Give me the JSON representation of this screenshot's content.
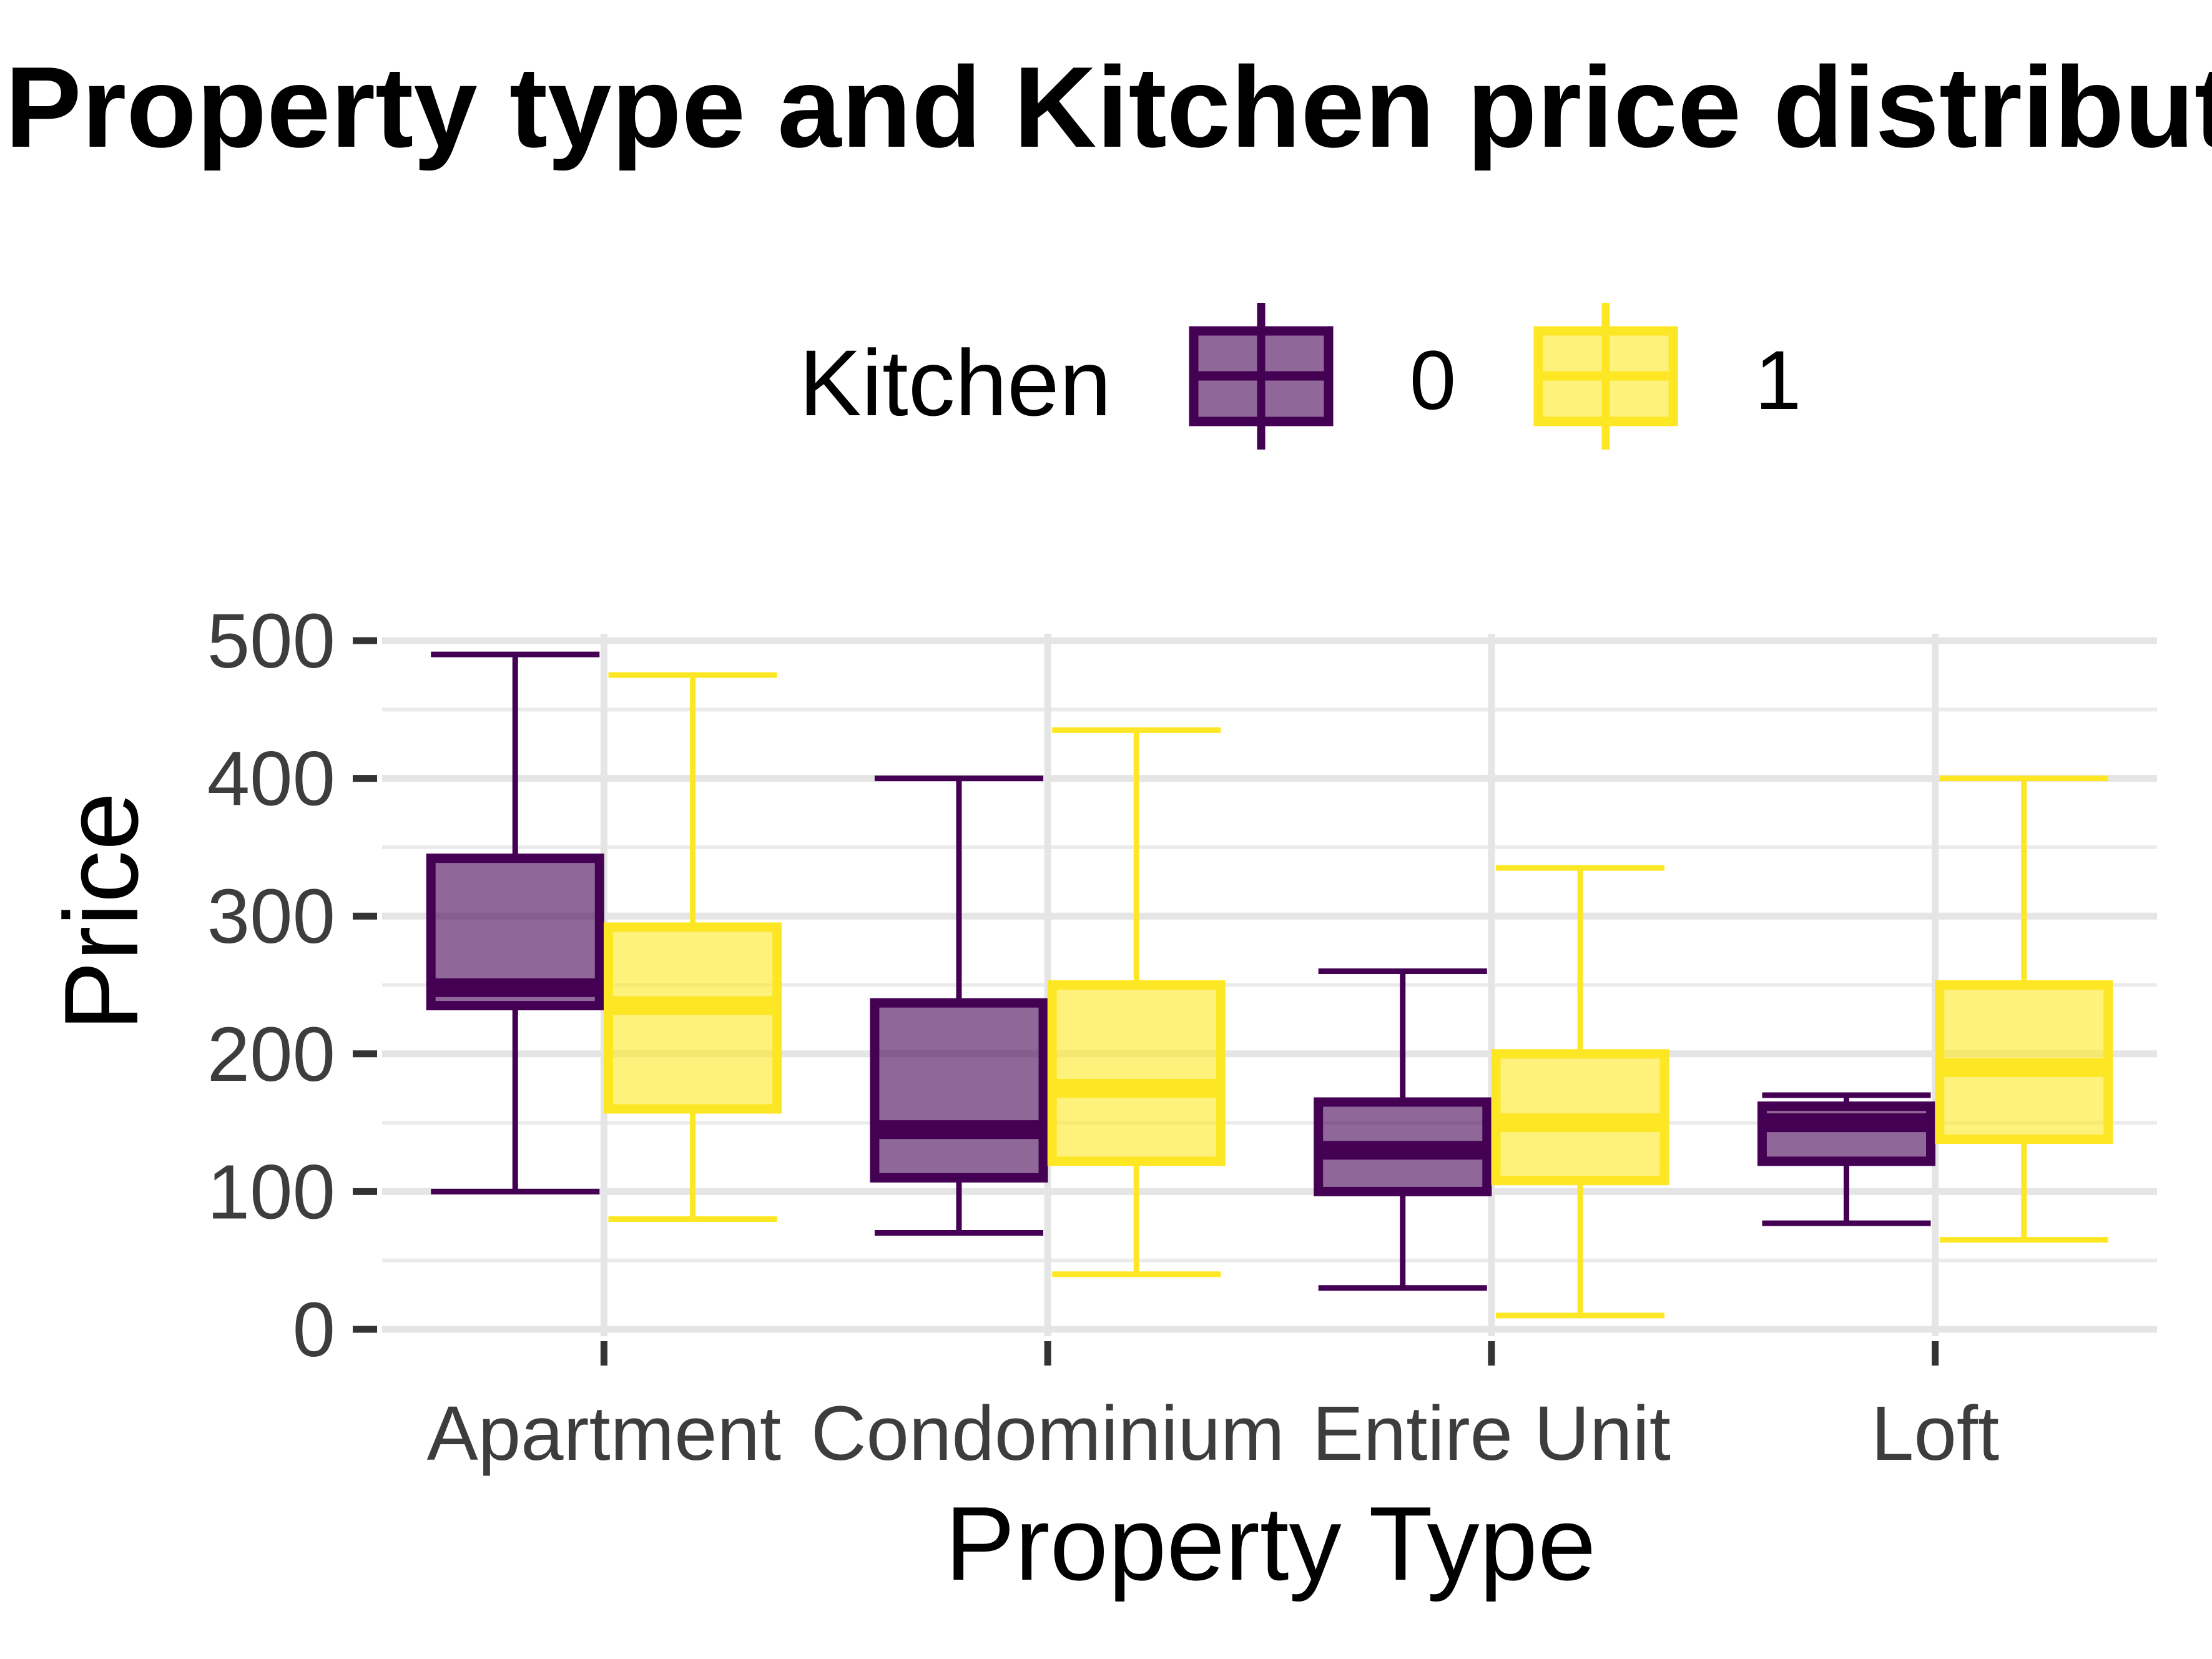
{
  "chart_data": {
    "type": "boxplot",
    "title": "Property type and Kitchen price distribution",
    "xlabel": "Property Type",
    "ylabel": "Price",
    "categories": [
      "Apartment",
      "Condominium",
      "Entire Unit",
      "Loft"
    ],
    "ylim": [
      -5,
      505
    ],
    "yticks": [
      0,
      100,
      200,
      300,
      400,
      500
    ],
    "grid": true,
    "legend": {
      "title": "Kitchen",
      "position": "top",
      "entries": [
        "0",
        "1"
      ]
    },
    "series": [
      {
        "name": "0",
        "color": "#440154",
        "fill": "#440154",
        "fill_opacity": 0.6,
        "boxes": [
          {
            "category": "Apartment",
            "low": 100,
            "q1": 235,
            "median": 248,
            "q3": 342,
            "high": 490
          },
          {
            "category": "Condominium",
            "low": 70,
            "q1": 110,
            "median": 145,
            "q3": 237,
            "high": 400
          },
          {
            "category": "Entire Unit",
            "low": 30,
            "q1": 100,
            "median": 130,
            "q3": 165,
            "high": 260
          },
          {
            "category": "Loft",
            "low": 77,
            "q1": 122,
            "median": 150,
            "q3": 162,
            "high": 170
          }
        ]
      },
      {
        "name": "1",
        "color": "#FDE725",
        "fill": "#FDE725",
        "fill_opacity": 0.6,
        "boxes": [
          {
            "category": "Apartment",
            "low": 80,
            "q1": 160,
            "median": 235,
            "q3": 292,
            "high": 475
          },
          {
            "category": "Condominium",
            "low": 40,
            "q1": 122,
            "median": 175,
            "q3": 250,
            "high": 435
          },
          {
            "category": "Entire Unit",
            "low": 10,
            "q1": 108,
            "median": 150,
            "q3": 200,
            "high": 335
          },
          {
            "category": "Loft",
            "low": 65,
            "q1": 138,
            "median": 190,
            "q3": 250,
            "high": 400
          }
        ]
      }
    ]
  }
}
